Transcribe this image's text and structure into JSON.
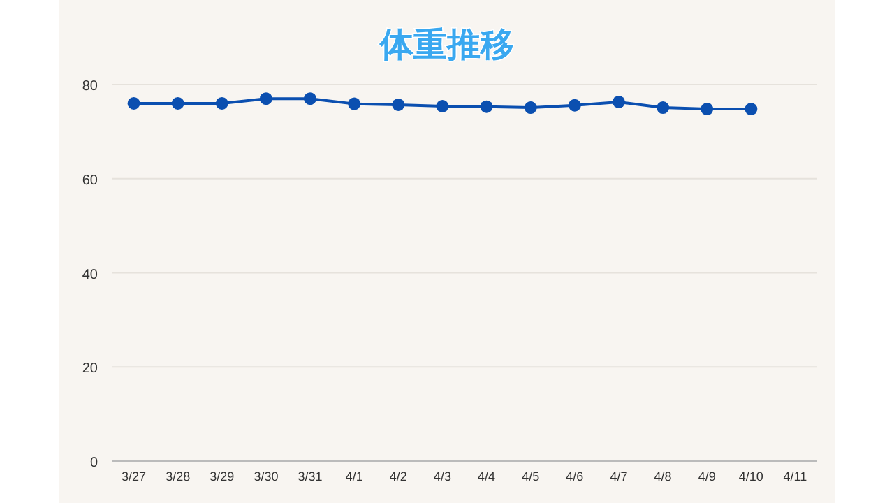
{
  "chart_data": {
    "type": "line",
    "title": "体重推移",
    "categories": [
      "3/27",
      "3/28",
      "3/29",
      "3/30",
      "3/31",
      "4/1",
      "4/2",
      "4/3",
      "4/4",
      "4/5",
      "4/6",
      "4/7",
      "4/8",
      "4/9",
      "4/10",
      "4/11"
    ],
    "series": [
      {
        "color": "#0b4fb0",
        "values": [
          76,
          76,
          76,
          77,
          77,
          75.9,
          75.7,
          75.4,
          75.3,
          75.1,
          75.6,
          76.3,
          75.1,
          74.8,
          74.8,
          null
        ]
      }
    ],
    "ylim": [
      0,
      80
    ],
    "yticks": [
      0,
      20,
      40,
      60,
      80
    ],
    "grid": "y",
    "marker": "circle",
    "line_style": "solid"
  }
}
